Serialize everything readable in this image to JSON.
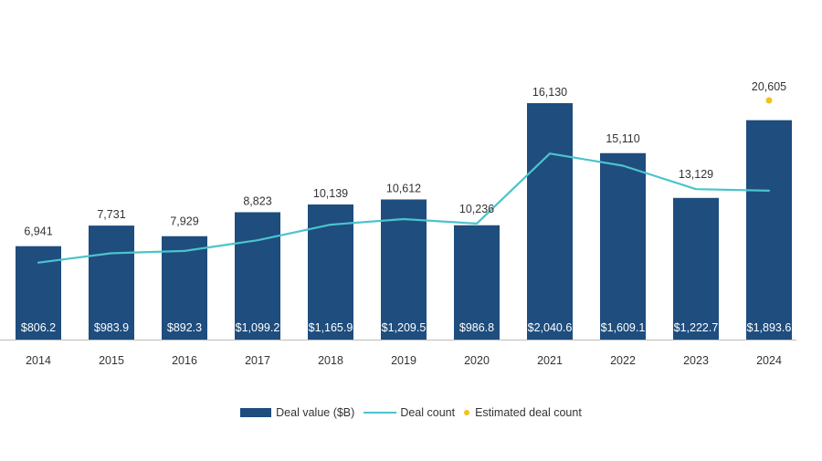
{
  "colors": {
    "bar": "#1e4d7e",
    "line": "#4cc3cd",
    "estimate": "#f2c318",
    "axis": "#bdbdbd",
    "count_text": "#333333",
    "inner_label": "#ffffff",
    "tick_text": "#333333"
  },
  "chart_data": {
    "type": "bar+line",
    "title": "",
    "xlabel": "",
    "ylabel": "",
    "categories": [
      "2014",
      "2015",
      "2016",
      "2017",
      "2018",
      "2019",
      "2020",
      "2021",
      "2022",
      "2023",
      "2024"
    ],
    "series": [
      {
        "name": "Deal value ($B)",
        "type": "bar",
        "values": [
          806.2,
          983.9,
          892.3,
          1099.2,
          1165.9,
          1209.5,
          986.8,
          2040.6,
          1609.1,
          1222.7,
          1893.6
        ],
        "labels": [
          "$806.2",
          "$983.9",
          "$892.3",
          "$1,099.2",
          "$1,165.9",
          "$1,209.5",
          "$986.8",
          "$2,040.6",
          "$1,609.1",
          "$1,222.7",
          "$1,893.6"
        ]
      },
      {
        "name": "Deal count",
        "type": "line",
        "values": [
          6941,
          7731,
          7929,
          8823,
          10139,
          10612,
          10236,
          16130,
          15110,
          13129,
          13000
        ],
        "labels": [
          "6,941",
          "7,731",
          "7,929",
          "8,823",
          "10,139",
          "10,612",
          "10,236",
          "16,130",
          "15,110",
          "13,129",
          ""
        ]
      },
      {
        "name": "Estimated deal count",
        "type": "scatter",
        "category": "2024",
        "value": 20605,
        "label": "20,605"
      }
    ],
    "value_ylim": [
      0,
      2040.6
    ],
    "count_ylim": [
      0,
      20605
    ],
    "grid": false,
    "legend": "bottom-center"
  },
  "legend": [
    {
      "label": "Deal value ($B)",
      "kind": "bar"
    },
    {
      "label": "Deal count",
      "kind": "line"
    },
    {
      "label": "Estimated deal count",
      "kind": "dot"
    }
  ]
}
